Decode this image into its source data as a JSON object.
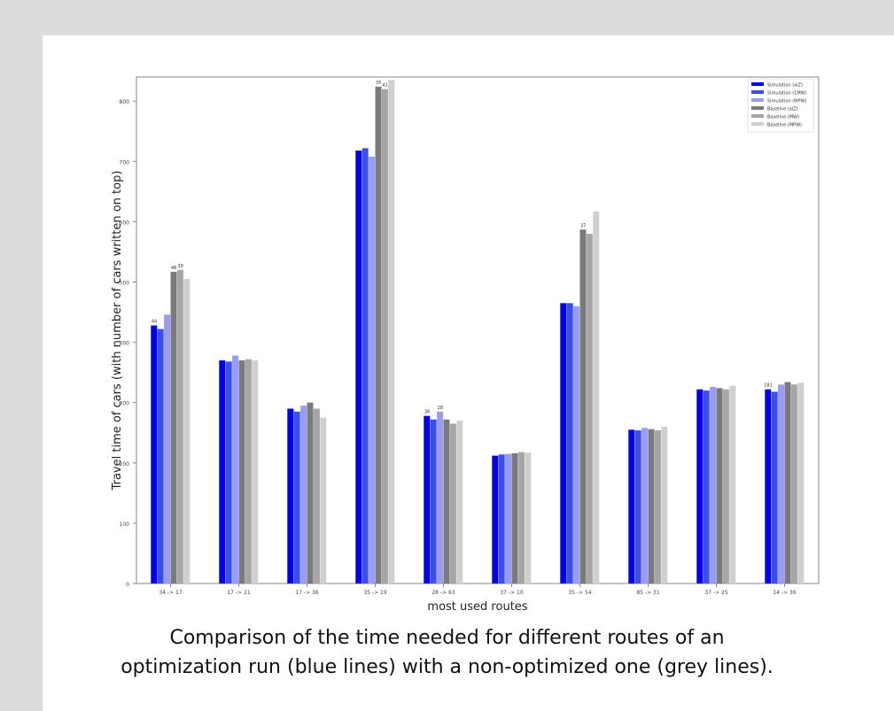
{
  "caption": {
    "line1": "Comparison of the time needed for different routes of an",
    "line2": "optimization run (blue lines) with a non-optimized one (grey lines)."
  },
  "chart_data": {
    "type": "bar",
    "title": "",
    "xlabel": "most used routes",
    "ylabel": "Travel time of cars (with number of cars written on top)",
    "ylim": [
      0,
      840
    ],
    "yticks": [
      0,
      100,
      200,
      300,
      400,
      500,
      600,
      700,
      800
    ],
    "grid": false,
    "legend_position": "top-right",
    "categories": [
      "34 -> 17",
      "17 -> 21",
      "17 -> 36",
      "35 -> 19",
      "28 -> 63",
      "37 -> 10",
      "35 -> 54",
      "85 -> 31",
      "37 -> 25",
      "14 -> 36"
    ],
    "series": [
      {
        "name": "Simulation (alZ)",
        "color": "#0000ee",
        "values": [
          428,
          370,
          290,
          718,
          278,
          212,
          465,
          255,
          322,
          322
        ],
        "labels": [
          "44",
          "",
          "",
          "",
          "38",
          "",
          "",
          "",
          "",
          "181"
        ]
      },
      {
        "name": "Simulation (1MW)",
        "color": "#3a4fe6",
        "values": [
          422,
          368,
          285,
          722,
          272,
          214,
          465,
          254,
          320,
          318
        ],
        "labels": [
          "",
          "",
          "",
          "",
          "",
          "",
          "",
          "",
          "",
          ""
        ]
      },
      {
        "name": "Simulation (MPW)",
        "color": "#9a9cf2",
        "values": [
          446,
          378,
          295,
          708,
          285,
          215,
          460,
          258,
          326,
          330
        ],
        "labels": [
          "",
          "",
          "",
          "",
          "28",
          "",
          "",
          "",
          "",
          ""
        ]
      },
      {
        "name": "Baseline (alZ)",
        "color": "#7a7a7a",
        "values": [
          517,
          370,
          300,
          824,
          272,
          216,
          587,
          256,
          324,
          334
        ],
        "labels": [
          "48",
          "",
          "",
          "35",
          "",
          "",
          "37",
          "",
          "",
          ""
        ]
      },
      {
        "name": "Baseline (MW)",
        "color": "#a6a6a6",
        "values": [
          520,
          372,
          290,
          820,
          265,
          218,
          580,
          254,
          322,
          330
        ],
        "labels": [
          "39",
          "",
          "",
          "41",
          "",
          "",
          "",
          "",
          "",
          ""
        ]
      },
      {
        "name": "Baseline (MPW)",
        "color": "#cfcfcf",
        "values": [
          505,
          370,
          275,
          835,
          270,
          217,
          617,
          260,
          328,
          333
        ],
        "labels": [
          "",
          "",
          "",
          "",
          "",
          "",
          "",
          "",
          "",
          ""
        ]
      }
    ]
  }
}
